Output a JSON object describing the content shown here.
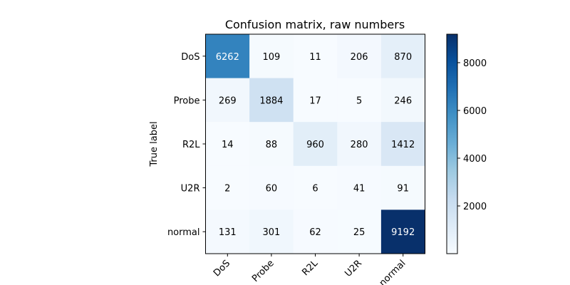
{
  "chart_data": {
    "type": "heatmap",
    "title": "Confusion matrix, raw numbers",
    "ylabel": "True label",
    "xlabel": "",
    "row_labels": [
      "DoS",
      "Probe",
      "R2L",
      "U2R",
      "normal"
    ],
    "col_labels": [
      "DoS",
      "Probe",
      "R2L",
      "U2R",
      "normal"
    ],
    "values": [
      [
        6262,
        109,
        11,
        206,
        870
      ],
      [
        269,
        1884,
        17,
        5,
        246
      ],
      [
        14,
        88,
        960,
        280,
        1412
      ],
      [
        2,
        60,
        6,
        41,
        91
      ],
      [
        131,
        301,
        62,
        25,
        9192
      ]
    ],
    "colormap": "Blues",
    "color_range": [
      2,
      9192
    ],
    "colorbar_ticks": [
      2000,
      4000,
      6000,
      8000
    ]
  }
}
